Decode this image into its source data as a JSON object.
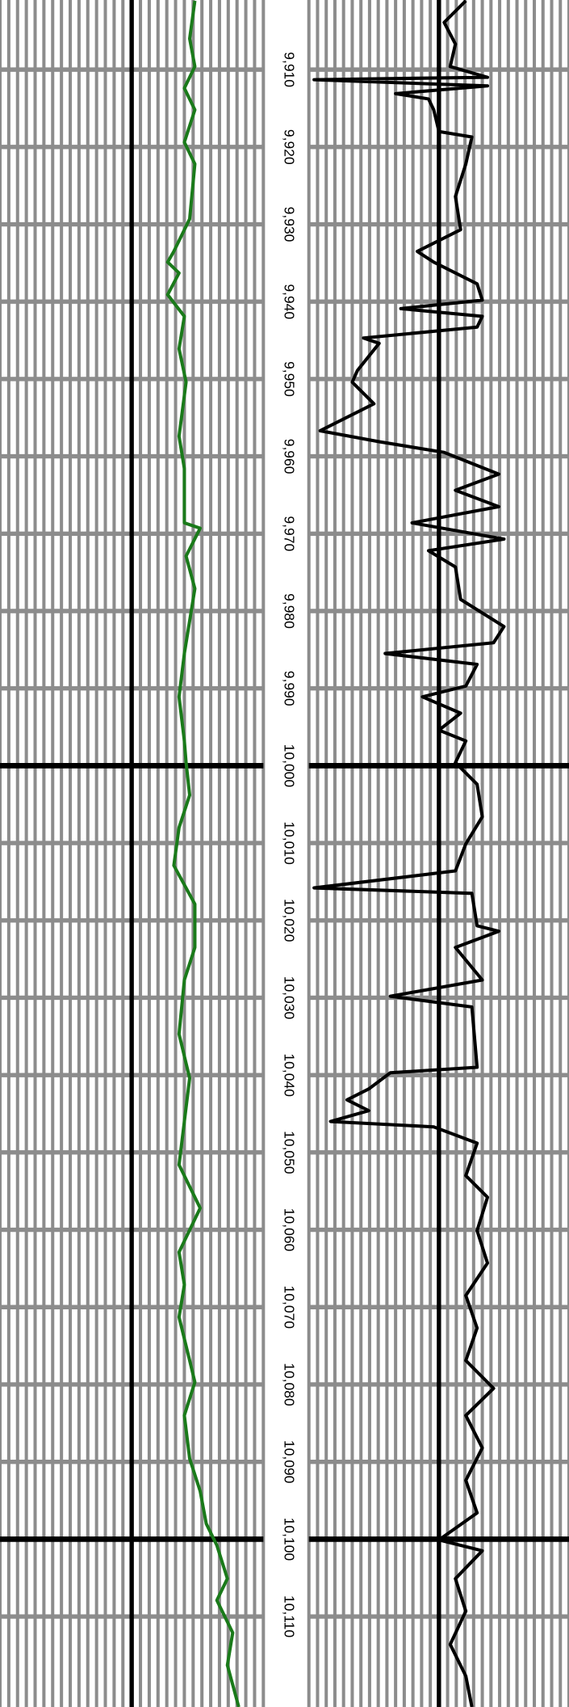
{
  "chart_data": {
    "type": "well-log",
    "ylim": [
      9901,
      10121.7
    ],
    "yticks": [
      {
        "value": 9910,
        "label": "9,910"
      },
      {
        "value": 9920,
        "label": "9,920"
      },
      {
        "value": 9930,
        "label": "9,930"
      },
      {
        "value": 9940,
        "label": "9,940"
      },
      {
        "value": 9950,
        "label": "9,950"
      },
      {
        "value": 9960,
        "label": "9,960"
      },
      {
        "value": 9970,
        "label": "9,970"
      },
      {
        "value": 9980,
        "label": "9,980"
      },
      {
        "value": 9990,
        "label": "9,990"
      },
      {
        "value": 10000,
        "label": "10,000"
      },
      {
        "value": 10010,
        "label": "10,010"
      },
      {
        "value": 10020,
        "label": "10,020"
      },
      {
        "value": 10030,
        "label": "10,030"
      },
      {
        "value": 10040,
        "label": "10,040"
      },
      {
        "value": 10050,
        "label": "10,050"
      },
      {
        "value": 10060,
        "label": "10,060"
      },
      {
        "value": 10070,
        "label": "10,070"
      },
      {
        "value": 10080,
        "label": "10,080"
      },
      {
        "value": 10090,
        "label": "10,090"
      },
      {
        "value": 10100,
        "label": "10,100"
      },
      {
        "value": 10110,
        "label": "10,110"
      }
    ],
    "ymajor": [
      10000,
      10100
    ],
    "xlim": [
      0,
      30
    ],
    "xticks": [
      0,
      1,
      2,
      3,
      4,
      5,
      6,
      7,
      8,
      9,
      10,
      11,
      12,
      13,
      14,
      15,
      16,
      17,
      18,
      19,
      20,
      21,
      22,
      23,
      24,
      25,
      26,
      27,
      28,
      29,
      30
    ],
    "xmajor": [
      15
    ],
    "series": [
      {
        "color": "#1a7a1a",
        "depth": [
          9901.1,
          9906,
          9909.6,
          9912.4,
          9915.2,
          9919.4,
          9922.2,
          9929.3,
          9933.5,
          9934.9,
          9936.3,
          9939.1,
          9941.9,
          9946.1,
          9950.4,
          9957.4,
          9961.6,
          9968.6,
          9969.3,
          9972.9,
          9977.1,
          9985.5,
          9991.1,
          9996.8,
          9999.6,
          10003.8,
          10008,
          10012.9,
          10017.9,
          10023.5,
          10027.7,
          10034.7,
          10040.4,
          10046,
          10051.6,
          10057.2,
          10062.9,
          10067.1,
          10071.3,
          10076.9,
          10079.7,
          10084,
          10089.6,
          10093.8,
          10098,
          10100.8,
          10105.1,
          10107.9,
          10112.1,
          10116.3,
          10121.7
        ],
        "values": [
          22.2,
          21.6,
          22.2,
          21,
          22.2,
          21,
          22.2,
          21.6,
          19.8,
          19.1,
          20.4,
          19.1,
          21,
          20.4,
          21.2,
          20.4,
          21,
          21,
          22.8,
          21.2,
          22.2,
          21,
          20.4,
          21,
          21.2,
          21.6,
          20.4,
          19.8,
          22.2,
          22.2,
          21,
          20.4,
          21.6,
          21,
          20.4,
          22.8,
          20.4,
          21,
          20.4,
          21.6,
          22.2,
          21,
          21.6,
          22.8,
          23.5,
          24.7,
          25.9,
          24.7,
          26.5,
          25.9,
          27.2
        ]
      },
      {
        "color": "#000000",
        "depth": [
          9901.1,
          9903.9,
          9906.7,
          9909.6,
          9911,
          9911.3,
          9912.1,
          9913.1,
          9913.8,
          9915.2,
          9918,
          9918.7,
          9922.2,
          9926.4,
          9930.7,
          9933.5,
          9934.9,
          9937.7,
          9939.8,
          9940.9,
          9941.9,
          9943.3,
          9944.7,
          9945.4,
          9948.9,
          9950.4,
          9953.2,
          9956.7,
          9958.1,
          9959.5,
          9962.3,
          9964.4,
          9966.5,
          9968.6,
          9970.7,
          9972.2,
          9974.3,
          9978.5,
          9982,
          9984.1,
          9985.5,
          9986.9,
          9989.7,
          9991.1,
          9993.2,
          9995.4,
          9996.8,
          9999.6,
          10002.4,
          10006.6,
          10010.1,
          10013.6,
          10015.8,
          10016.5,
          10020.7,
          10021.4,
          10023.5,
          10027.7,
          10029.8,
          10031.2,
          10039,
          10039.7,
          10041.8,
          10043.2,
          10044.6,
          10046,
          10046.7,
          10048.8,
          10053,
          10055.8,
          10060.1,
          10064.3,
          10068.5,
          10072.7,
          10076.9,
          10080.5,
          10084,
          10088.2,
          10092.4,
          10096.6,
          10100.1,
          10101.5,
          10105.1,
          10109.3,
          10113.6,
          10117.7,
          10121.7
        ],
        "values": [
          18.1,
          15.6,
          16.9,
          16.3,
          20.6,
          0.6,
          20.6,
          10,
          13.8,
          14.4,
          15,
          18.8,
          18.1,
          16.9,
          17.5,
          12.5,
          14.4,
          19.4,
          20,
          10.6,
          20,
          19.4,
          6.3,
          8.1,
          5.6,
          5,
          7.5,
          1.3,
          8.1,
          15.6,
          21.9,
          16.9,
          21.9,
          11.9,
          22.5,
          13.8,
          16.9,
          17.5,
          22.5,
          21.3,
          8.8,
          19.4,
          18.1,
          13.1,
          17.5,
          15,
          18.1,
          16.9,
          19.4,
          20,
          18.1,
          16.9,
          0.6,
          18.8,
          19.4,
          21.9,
          16.9,
          20,
          9.4,
          18.8,
          19.4,
          9.4,
          6.9,
          4.4,
          6.9,
          2.5,
          14.4,
          19.4,
          18.1,
          20.6,
          19.4,
          20.6,
          18.1,
          19.4,
          18.1,
          21.3,
          18.1,
          20,
          18.1,
          19.4,
          15,
          20,
          16.9,
          18.1,
          16.3,
          18.1,
          18.8
        ]
      }
    ]
  }
}
